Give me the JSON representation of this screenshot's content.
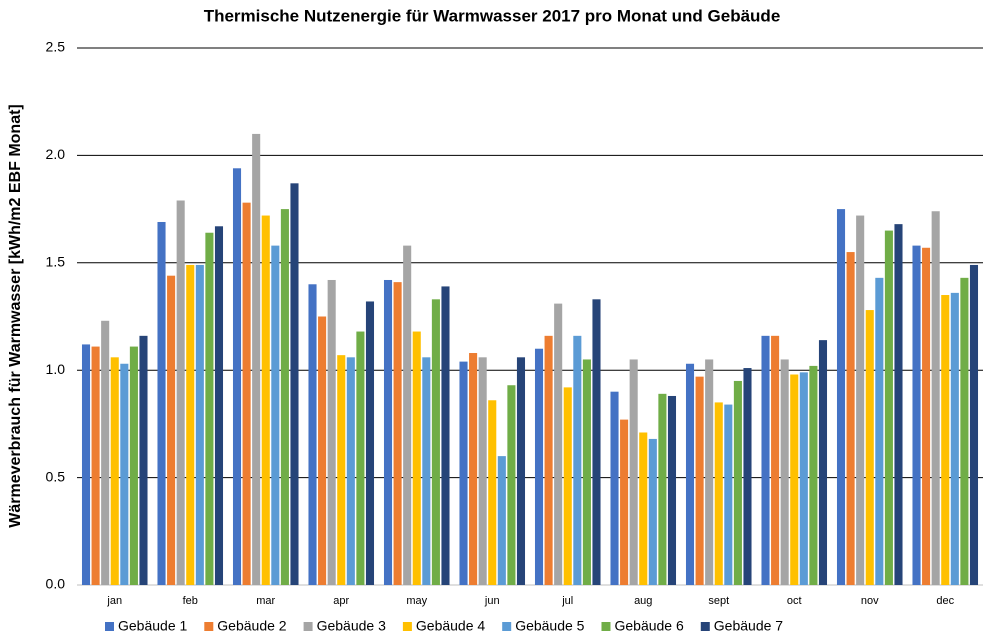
{
  "chart_data": {
    "type": "bar",
    "title": "Thermische Nutzenergie für Warmwasser 2017 pro Monat und Gebäude",
    "y_label": "Wärmeverbrauch für Warmwasser [kWh/m2 EBF Monat]",
    "categories": [
      "jan",
      "feb",
      "mar",
      "apr",
      "may",
      "jun",
      "jul",
      "aug",
      "sept",
      "oct",
      "nov",
      "dec"
    ],
    "series": [
      {
        "name": "Gebäude 1",
        "color": "#4472c4",
        "values": [
          1.12,
          1.69,
          1.94,
          1.4,
          1.42,
          1.04,
          1.1,
          0.9,
          1.03,
          1.16,
          1.75,
          1.58
        ]
      },
      {
        "name": "Gebäude 2",
        "color": "#ed7d31",
        "values": [
          1.11,
          1.44,
          1.78,
          1.25,
          1.41,
          1.08,
          1.16,
          0.77,
          0.97,
          1.16,
          1.55,
          1.57
        ]
      },
      {
        "name": "Gebäude 3",
        "color": "#a5a5a5",
        "values": [
          1.23,
          1.79,
          2.1,
          1.42,
          1.58,
          1.06,
          1.31,
          1.05,
          1.05,
          1.05,
          1.72,
          1.74
        ]
      },
      {
        "name": "Gebäude 4",
        "color": "#ffc000",
        "values": [
          1.06,
          1.49,
          1.72,
          1.07,
          1.18,
          0.86,
          0.92,
          0.71,
          0.85,
          0.98,
          1.28,
          1.35
        ]
      },
      {
        "name": "Gebäude 5",
        "color": "#5b9bd5",
        "values": [
          1.03,
          1.49,
          1.58,
          1.06,
          1.06,
          0.6,
          1.16,
          0.68,
          0.84,
          0.99,
          1.43,
          1.36
        ]
      },
      {
        "name": "Gebäude 6",
        "color": "#70ad47",
        "values": [
          1.11,
          1.64,
          1.75,
          1.18,
          1.33,
          0.93,
          1.05,
          0.89,
          0.95,
          1.02,
          1.65,
          1.43
        ]
      },
      {
        "name": "Gebäude 7",
        "color": "#264478",
        "values": [
          1.16,
          1.67,
          1.87,
          1.32,
          1.39,
          1.06,
          1.33,
          0.88,
          1.01,
          1.14,
          1.68,
          1.49
        ]
      }
    ],
    "ylim": [
      0,
      2.5
    ],
    "yticks": [
      {
        "value": 0,
        "label": "0.0"
      },
      {
        "value": 0.5,
        "label": "0.5"
      },
      {
        "value": 1,
        "label": "1.0"
      },
      {
        "value": 1.5,
        "label": "1.5"
      },
      {
        "value": 2,
        "label": "2.0"
      },
      {
        "value": 2.5,
        "label": "2.5"
      }
    ],
    "grid": true,
    "legend": "bottom"
  }
}
